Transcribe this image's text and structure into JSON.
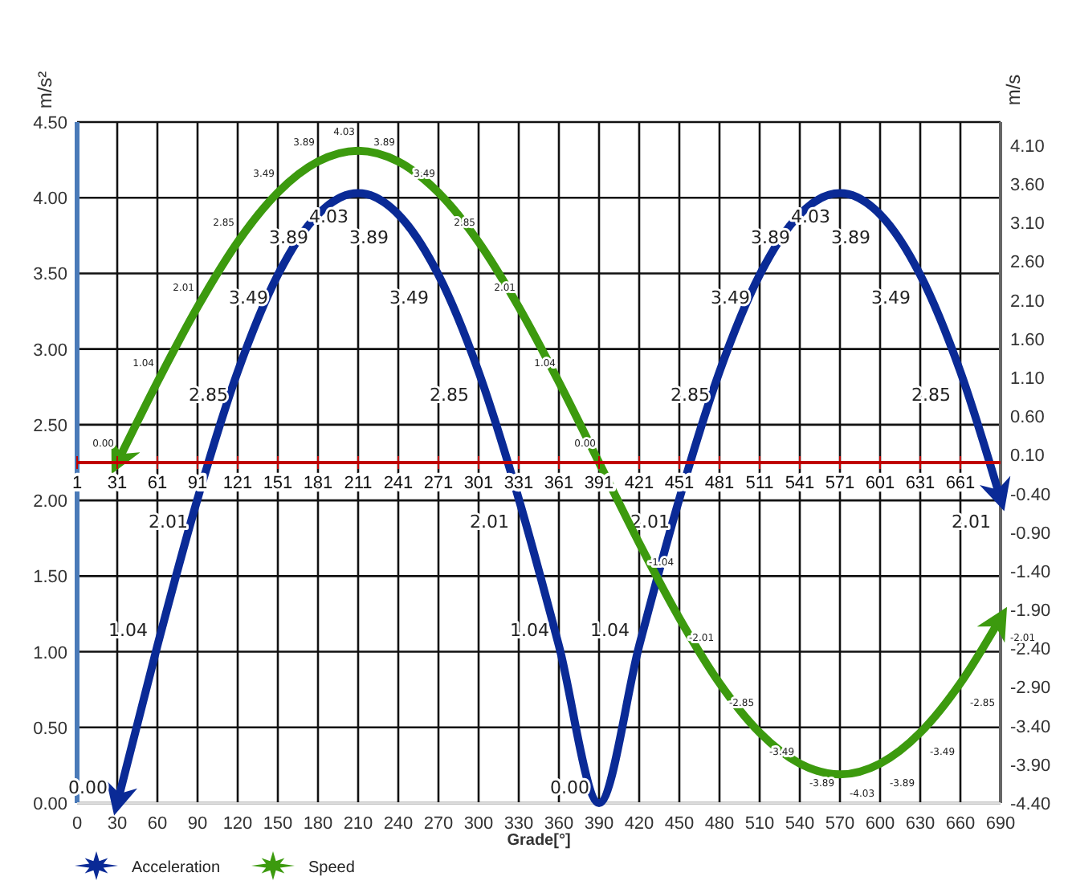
{
  "chart_data": {
    "type": "line",
    "xlabel": "Grade[°]",
    "ylabel": "m/s²",
    "y2label": "m/s",
    "x": [
      30,
      60,
      90,
      120,
      150,
      180,
      210,
      240,
      270,
      300,
      330,
      360,
      390,
      420,
      450,
      480,
      510,
      540,
      570,
      600,
      630,
      660,
      690
    ],
    "xlim": [
      0,
      690
    ],
    "xticks": [
      0,
      30,
      60,
      90,
      120,
      150,
      180,
      210,
      240,
      270,
      300,
      330,
      360,
      390,
      420,
      450,
      480,
      510,
      540,
      570,
      600,
      630,
      660,
      690
    ],
    "x2lim": [
      1,
      691
    ],
    "x2ticks": [
      1,
      31,
      61,
      91,
      121,
      151,
      181,
      211,
      241,
      271,
      301,
      331,
      361,
      391,
      421,
      451,
      481,
      511,
      541,
      571,
      601,
      631,
      661
    ],
    "ylim": [
      0,
      4.5
    ],
    "yticks": [
      {
        "value": 0,
        "label": "0.00"
      },
      {
        "value": 0.5,
        "label": "0.50"
      },
      {
        "value": 1,
        "label": "1.00"
      },
      {
        "value": 1.5,
        "label": "1.50"
      },
      {
        "value": 2,
        "label": "2.00"
      },
      {
        "value": 2.5,
        "label": "2.50"
      },
      {
        "value": 3,
        "label": "3.00"
      },
      {
        "value": 3.5,
        "label": "3.50"
      },
      {
        "value": 4,
        "label": "4.00"
      },
      {
        "value": 4.5,
        "label": "4.50"
      }
    ],
    "y2lim": [
      -4.4,
      4.4
    ],
    "y2ticks": [
      {
        "value": -4.4,
        "label": "-4.40"
      },
      {
        "value": -3.9,
        "label": "-3.90"
      },
      {
        "value": -3.4,
        "label": "-3.40"
      },
      {
        "value": -2.9,
        "label": "-2.90"
      },
      {
        "value": -2.4,
        "label": "-2.40"
      },
      {
        "value": -1.9,
        "label": "-1.90"
      },
      {
        "value": -1.4,
        "label": "-1.40"
      },
      {
        "value": -0.9,
        "label": "-0.90"
      },
      {
        "value": -0.4,
        "label": "-0.40"
      },
      {
        "value": 0.1,
        "label": "0.10"
      },
      {
        "value": 0.6,
        "label": "0.60"
      },
      {
        "value": 1.1,
        "label": "1.10"
      },
      {
        "value": 1.6,
        "label": "1.60"
      },
      {
        "value": 2.1,
        "label": "2.10"
      },
      {
        "value": 2.6,
        "label": "2.60"
      },
      {
        "value": 3.1,
        "label": "3.10"
      },
      {
        "value": 3.6,
        "label": "3.60"
      },
      {
        "value": 4.1,
        "label": "4.10"
      }
    ],
    "grid": true,
    "legend": "bottom left",
    "marker": "none",
    "line_style": "solid",
    "series": [
      {
        "name": "Acceleration",
        "color": "#0a2a96",
        "values": [
          0,
          1.04,
          2.01,
          2.85,
          3.49,
          3.89,
          4.03,
          3.89,
          3.49,
          2.85,
          2.01,
          1.04,
          0,
          1.04,
          2.01,
          2.85,
          3.49,
          3.89,
          4.03,
          3.89,
          3.49,
          2.85,
          2.01
        ],
        "value_labels": [
          "0.00",
          "1.04",
          "2.01",
          "2.85",
          "3.49",
          "3.89",
          "4.03",
          "3.89",
          "3.49",
          "2.85",
          "2.01",
          "1.04",
          "0.00",
          "1.04",
          "2.01",
          "2.85",
          "3.49",
          "3.89",
          "4.03",
          "3.89",
          "3.49",
          "2.85",
          "2.01"
        ]
      },
      {
        "name": "Speed",
        "color": "#3c9a0e",
        "axis": "y2",
        "values": [
          0,
          1.04,
          2.01,
          2.85,
          3.49,
          3.89,
          4.03,
          3.89,
          3.49,
          2.85,
          2.01,
          1.04,
          0,
          -1.04,
          -2.01,
          -2.85,
          -3.49,
          -3.89,
          -4.03,
          -3.89,
          -3.49,
          -2.85,
          -2.01
        ],
        "value_labels": [
          "0.00",
          "1.04",
          "2.01",
          "2.85",
          "3.49",
          "3.89",
          "4.03",
          "3.89",
          "3.49",
          "2.85",
          "2.01",
          "1.04",
          "0.00",
          "-1.04",
          "-2.01",
          "-2.85",
          "-3.49",
          "-3.89",
          "-4.03",
          "-3.89",
          "-3.49",
          "-2.85",
          "-2.01"
        ]
      }
    ]
  }
}
